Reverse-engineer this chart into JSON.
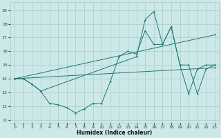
{
  "xlabel": "Humidex (Indice chaleur)",
  "xlim": [
    -0.5,
    23.5
  ],
  "ylim": [
    10.8,
    19.6
  ],
  "yticks": [
    11,
    12,
    13,
    14,
    15,
    16,
    17,
    18,
    19
  ],
  "xticks": [
    0,
    1,
    2,
    3,
    4,
    5,
    6,
    7,
    8,
    9,
    10,
    11,
    12,
    13,
    14,
    15,
    16,
    17,
    18,
    19,
    20,
    21,
    22,
    23
  ],
  "bg_color": "#cce8e8",
  "grid_color": "#aacccc",
  "line_color": "#1a7a6e",
  "lines": [
    {
      "x": [
        0,
        1,
        2,
        3,
        4,
        5,
        6,
        7,
        8,
        9,
        10,
        11,
        12,
        13,
        14,
        15,
        16,
        17,
        18,
        19,
        20,
        21,
        22,
        23
      ],
      "y": [
        14,
        14,
        13.6,
        13.1,
        12.2,
        12.1,
        11.9,
        11.5,
        11.8,
        12.2,
        12.2,
        13.8,
        15.6,
        16.0,
        15.8,
        17.5,
        16.5,
        16.5,
        17.8,
        15.0,
        12.9,
        14.7,
        15.0,
        15.0
      ]
    },
    {
      "x": [
        0,
        1,
        2,
        3,
        14,
        15,
        16,
        17,
        18,
        19,
        20,
        21,
        22,
        23
      ],
      "y": [
        14,
        14,
        13.6,
        13.1,
        15.6,
        18.3,
        18.9,
        16.5,
        17.8,
        15.0,
        15.0,
        12.9,
        14.7,
        15.0
      ]
    },
    {
      "x": [
        0,
        23
      ],
      "y": [
        14,
        17.2
      ]
    },
    {
      "x": [
        0,
        23
      ],
      "y": [
        14,
        14.8
      ]
    }
  ]
}
